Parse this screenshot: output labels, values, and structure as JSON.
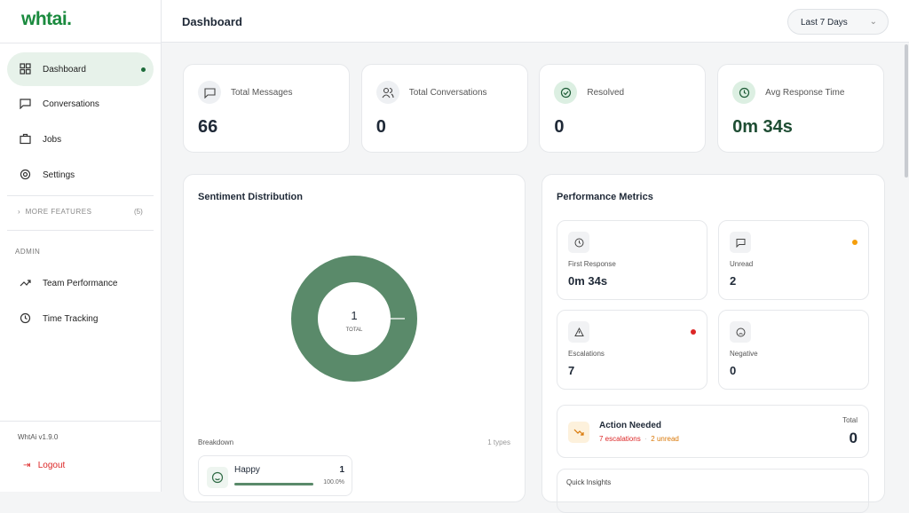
{
  "sidebar": {
    "logo": "whtai.",
    "nav": [
      "Dashboard",
      "Conversations",
      "Jobs",
      "Settings"
    ],
    "more_features": "MORE FEATURES",
    "more_count": "(5)",
    "admin_heading": "ADMIN",
    "admin_nav": [
      "Team Performance",
      "Time Tracking"
    ],
    "version": "WhtAi v1.9.0",
    "logout": "Logout"
  },
  "header": {
    "title": "Dashboard",
    "range": "Last 7 Days"
  },
  "stats": [
    {
      "label": "Total Messages",
      "value": "66"
    },
    {
      "label": "Total Conversations",
      "value": "0"
    },
    {
      "label": "Resolved",
      "value": "0"
    },
    {
      "label": "Avg Response Time",
      "value": "0m 34s"
    }
  ],
  "sentiment": {
    "title": "Sentiment Distribution",
    "total": 1,
    "total_label": "TOTAL",
    "breakdown_heading": "Breakdown",
    "types": "1 types",
    "items": [
      {
        "label": "Happy",
        "count": 1,
        "percent": "100.0%"
      }
    ]
  },
  "performance": {
    "title": "Performance Metrics",
    "metrics": [
      {
        "label": "First Response",
        "value": "0m 34s"
      },
      {
        "label": "Unread",
        "value": "2"
      },
      {
        "label": "Escalations",
        "value": "7"
      },
      {
        "label": "Negative",
        "value": "0"
      }
    ],
    "action": {
      "title": "Action Needed",
      "escalations": "7 escalations",
      "separator": "·",
      "unread": "2 unread",
      "total_label": "Total",
      "total": "0"
    },
    "quick_insights": "Quick Insights"
  }
}
